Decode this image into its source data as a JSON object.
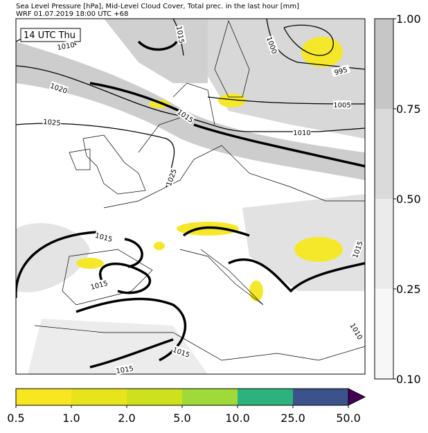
{
  "header": {
    "line1": "Sea Level Pressure [hPa], Mid-Level Cloud Cover, Total prec. in the last hour [mm]",
    "line2": "WRF 01.07.2019 18:00 UTC +68"
  },
  "map": {
    "time_label": "14 UTC Thu",
    "isobar_labels": [
      "1015",
      "1010",
      "1000",
      "995",
      "1020",
      "1015",
      "1005",
      "1025",
      "1010",
      "1025",
      "1015",
      "1015",
      "1015",
      "1015",
      "1015",
      "1010"
    ]
  },
  "cloud_colorbar": {
    "ticks": [
      "1.00",
      "0.75",
      "0.50",
      "0.25",
      "0.10"
    ],
    "colors": [
      "#c6c6c6",
      "#dadada",
      "#ebebeb",
      "#f7f7f7"
    ]
  },
  "precip_colorbar": {
    "ticks": [
      "0.5",
      "1.0",
      "2.0",
      "5.0",
      "10.0",
      "25.0",
      "50.0"
    ],
    "colors": [
      "#f8e621",
      "#e8e41b",
      "#cde11d",
      "#a0da39",
      "#2db27d",
      "#3b528b",
      "#440154"
    ]
  }
}
